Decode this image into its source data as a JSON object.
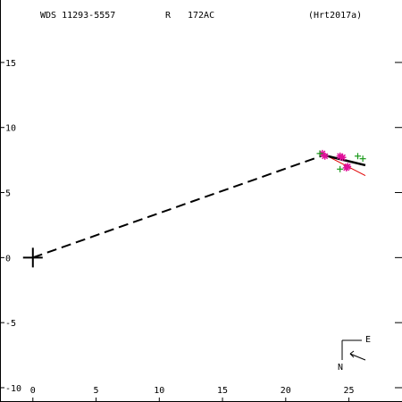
{
  "header": {
    "system": "WDS 11293-5557",
    "flag": "R",
    "code": "172AC",
    "reference": "(Hrt2017a)"
  },
  "compass": {
    "east": "E",
    "north": "N"
  },
  "colors": {
    "axes": "#000000",
    "primary_marker": "#000000",
    "obs_asterisk": "#e0109a",
    "obs_plus": "#1a9a1a",
    "orbit_red": "#e00000",
    "orbit_black": "#000000"
  },
  "chart_data": {
    "type": "scatter",
    "title": "WDS 11293-5557   R   172AC   (Hrt2017a)",
    "xlabel": "",
    "ylabel": "",
    "xlim": [
      -2.6,
      29.2
    ],
    "ylim": [
      -11.1,
      19.8
    ],
    "xticks": [
      0,
      5,
      10,
      15,
      20,
      25
    ],
    "yticks": [
      -10,
      -5,
      0,
      5,
      10,
      15
    ],
    "tick_labels_x": [
      "0",
      "5",
      "10",
      "15",
      "20",
      "25"
    ],
    "tick_labels_y": [
      "-10",
      "-5",
      "0",
      "5",
      "10",
      "15"
    ],
    "grid": false,
    "legend": "none",
    "primary": {
      "x": 0,
      "y": 0,
      "marker": "large-cross"
    },
    "connector": {
      "x1": 0,
      "y1": 0,
      "x2": 22.8,
      "y2": 7.8,
      "style": "dashed"
    },
    "series": [
      {
        "marker": "asterisk",
        "color": "#e0109a",
        "points": [
          [
            22.9,
            8.0
          ],
          [
            23.1,
            7.8
          ],
          [
            24.3,
            7.8
          ],
          [
            24.5,
            7.7
          ],
          [
            24.9,
            7.0
          ],
          [
            24.8,
            6.9
          ]
        ]
      },
      {
        "marker": "plus",
        "color": "#1a9a1a",
        "points": [
          [
            22.7,
            8.0
          ],
          [
            24.3,
            6.8
          ],
          [
            25.7,
            7.8
          ],
          [
            26.1,
            7.6
          ]
        ]
      }
    ],
    "lines": [
      {
        "color": "#e00000",
        "points": [
          [
            22.9,
            8.0
          ],
          [
            26.3,
            6.3
          ]
        ]
      },
      {
        "color": "#000000",
        "points": [
          [
            22.9,
            7.9
          ],
          [
            26.3,
            7.1
          ]
        ],
        "width": 2.5
      }
    ]
  }
}
